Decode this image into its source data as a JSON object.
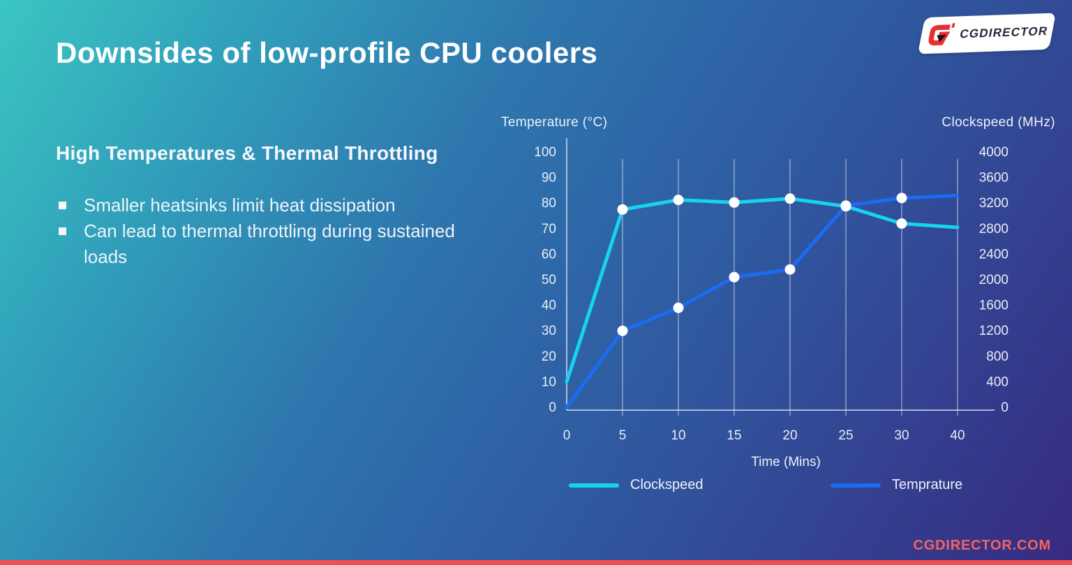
{
  "slide": {
    "title": "Downsides of low-profile CPU coolers",
    "heading": "High Temperatures & Thermal Throttling",
    "bullets": [
      "Smaller heatsinks limit heat dissipation",
      "Can lead to thermal throttling during sustained loads"
    ],
    "logo_text": "CGDIRECTOR",
    "footer_url": "CGDIRECTOR.COM"
  },
  "colors": {
    "background_teal": "#3bc6c1",
    "background_blue": "#2e66a7",
    "background_indigo": "#372a80",
    "clockspeed_line": "#17d4ee",
    "temperature_line": "#1b6cf2",
    "marker": "#ffffff",
    "grid": "rgba(225,230,245,0.40)",
    "axis": "rgba(215,220,240,0.75)",
    "tick_text": "#e9eef8",
    "accent_red": "#f26464",
    "footer_bar_red": "#f0504e",
    "logo_red": "#e8302f",
    "logo_dark": "#26263a"
  },
  "chart_data": {
    "type": "line",
    "x_label": "Time (Mins)",
    "x_spacing": "categorical",
    "categories": [
      "0",
      "5",
      "10",
      "15",
      "20",
      "25",
      "30",
      "40"
    ],
    "left_axis": {
      "label": "Temperature (°C)",
      "min": 0,
      "max": 100,
      "step": 10,
      "ticks": [
        100,
        90,
        80,
        70,
        60,
        50,
        40,
        30,
        20,
        10,
        0
      ]
    },
    "right_axis": {
      "label": "Clockspeed (MHz)",
      "min": 0,
      "max": 4000,
      "step": 400,
      "ticks": [
        4000,
        3600,
        3200,
        2800,
        2400,
        2000,
        1600,
        1200,
        800,
        400,
        0
      ]
    },
    "series": [
      {
        "name": "Clockspeed",
        "axis": "right",
        "color_key": "clockspeed_line",
        "values": [
          400,
          3100,
          3250,
          3210,
          3270,
          3150,
          2880,
          2820
        ]
      },
      {
        "name": "Temprature",
        "axis": "left",
        "color_key": "temperature_line",
        "values": [
          0,
          30,
          39,
          51,
          54,
          79,
          82,
          83
        ]
      }
    ],
    "marker_category_indices": [
      1,
      2,
      3,
      4,
      5,
      6
    ],
    "legend_position": "bottom",
    "grid": "vertical-only"
  }
}
